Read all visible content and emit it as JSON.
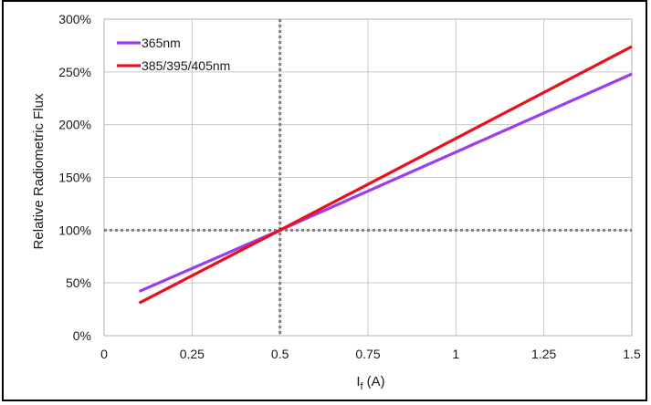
{
  "chart_data": {
    "type": "line",
    "title": "",
    "xlabel": "I",
    "xlabel_sub": "f",
    "xlabel_unit": "(A)",
    "ylabel": "Relative Radiometric Flux",
    "xlim": [
      0,
      1.5
    ],
    "ylim": [
      0,
      300
    ],
    "x_ticks": [
      0,
      0.25,
      0.5,
      0.75,
      1,
      1.25,
      1.5
    ],
    "x_tick_labels": [
      "0",
      "0.25",
      "0.5",
      "0.75",
      "1",
      "1.25",
      "1.5"
    ],
    "y_ticks": [
      0,
      50,
      100,
      150,
      200,
      250,
      300
    ],
    "y_tick_labels": [
      "0%",
      "50%",
      "100%",
      "150%",
      "200%",
      "250%",
      "300%"
    ],
    "grid": true,
    "legend_position": "top-left",
    "reference_lines": [
      {
        "axis": "x",
        "value": 0.5,
        "style": "dotted",
        "color": "#808080"
      },
      {
        "axis": "y",
        "value": 100,
        "style": "dotted",
        "color": "#808080"
      }
    ],
    "series": [
      {
        "name": "365nm",
        "color": "#9b3cf0",
        "x": [
          0.1,
          0.5,
          1.5
        ],
        "y": [
          42,
          100,
          248
        ]
      },
      {
        "name": "385/395/405nm",
        "color": "#e8101c",
        "x": [
          0.1,
          0.5,
          1.5
        ],
        "y": [
          31,
          100,
          274
        ]
      }
    ]
  }
}
